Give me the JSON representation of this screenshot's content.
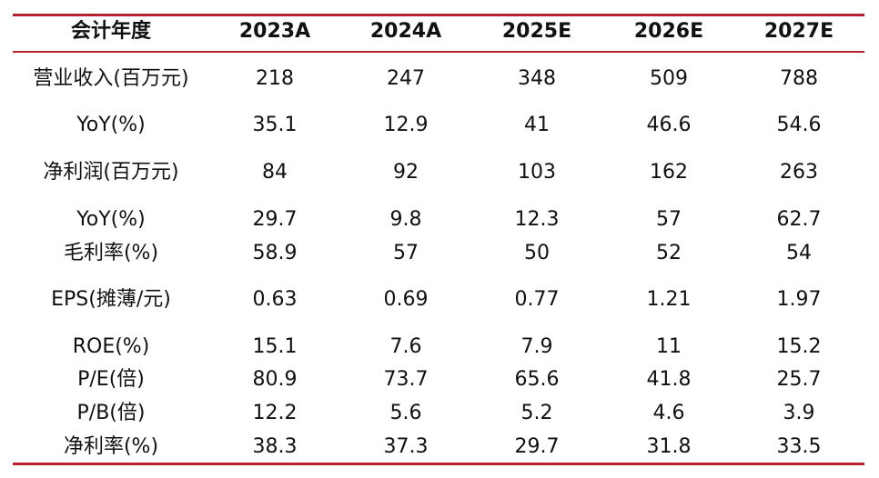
{
  "table": {
    "header": [
      "会计年度",
      "2023A",
      "2024A",
      "2025E",
      "2026E",
      "2027E"
    ],
    "rows": [
      {
        "label": "营业收入(百万元)",
        "values": [
          "218",
          "247",
          "348",
          "509",
          "788"
        ]
      },
      {
        "label": "YoY(%)",
        "values": [
          "35.1",
          "12.9",
          "41",
          "46.6",
          "54.6"
        ]
      },
      {
        "label": "净利润(百万元)",
        "values": [
          "84",
          "92",
          "103",
          "162",
          "263"
        ]
      },
      {
        "label": "YoY(%)",
        "values": [
          "29.7",
          "9.8",
          "12.3",
          "57",
          "62.7"
        ]
      },
      {
        "label": "毛利率(%)",
        "values": [
          "58.9",
          "57",
          "50",
          "52",
          "54"
        ]
      },
      {
        "label": "EPS(摊薄/元)",
        "values": [
          "0.63",
          "0.69",
          "0.77",
          "1.21",
          "1.97"
        ]
      },
      {
        "label": "ROE(%)",
        "values": [
          "15.1",
          "7.6",
          "7.9",
          "11",
          "15.2"
        ]
      },
      {
        "label": "P/E(倍)",
        "values": [
          "80.9",
          "73.7",
          "65.6",
          "41.8",
          "25.7"
        ]
      },
      {
        "label": "P/B(倍)",
        "values": [
          "12.2",
          "5.6",
          "5.2",
          "4.6",
          "3.9"
        ]
      },
      {
        "label": "净利率(%)",
        "values": [
          "38.3",
          "37.3",
          "29.7",
          "31.8",
          "33.5"
        ]
      }
    ]
  },
  "colors": {
    "rule": "#b5212e",
    "text": "#111111"
  }
}
